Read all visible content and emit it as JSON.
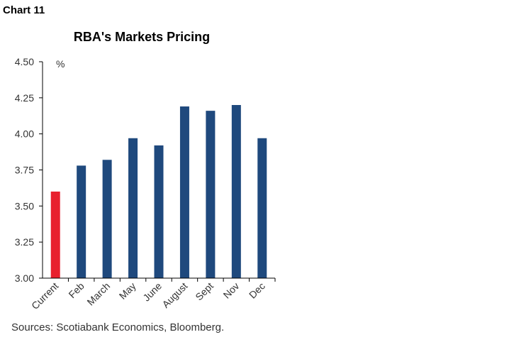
{
  "header": {
    "chart_label": "Chart 11"
  },
  "footer": {
    "source": "Sources: Scotiabank Economics, Bloomberg."
  },
  "chart_data": {
    "type": "bar",
    "title": "RBA's Markets Pricing",
    "ylabel": "%",
    "xlabel": "",
    "categories": [
      "Current",
      "Feb",
      "March",
      "May",
      "June",
      "August",
      "Sept",
      "Nov",
      "Dec"
    ],
    "values": [
      3.6,
      3.78,
      3.82,
      3.97,
      3.92,
      4.19,
      4.16,
      4.2,
      3.97
    ],
    "ylim": [
      3.0,
      4.5
    ],
    "yticks": [
      "3.00",
      "3.25",
      "3.50",
      "3.75",
      "4.00",
      "4.25",
      "4.50"
    ],
    "colors": {
      "highlight": "#e8202e",
      "bar": "#1f497d"
    },
    "grid": false,
    "legend": "none"
  }
}
